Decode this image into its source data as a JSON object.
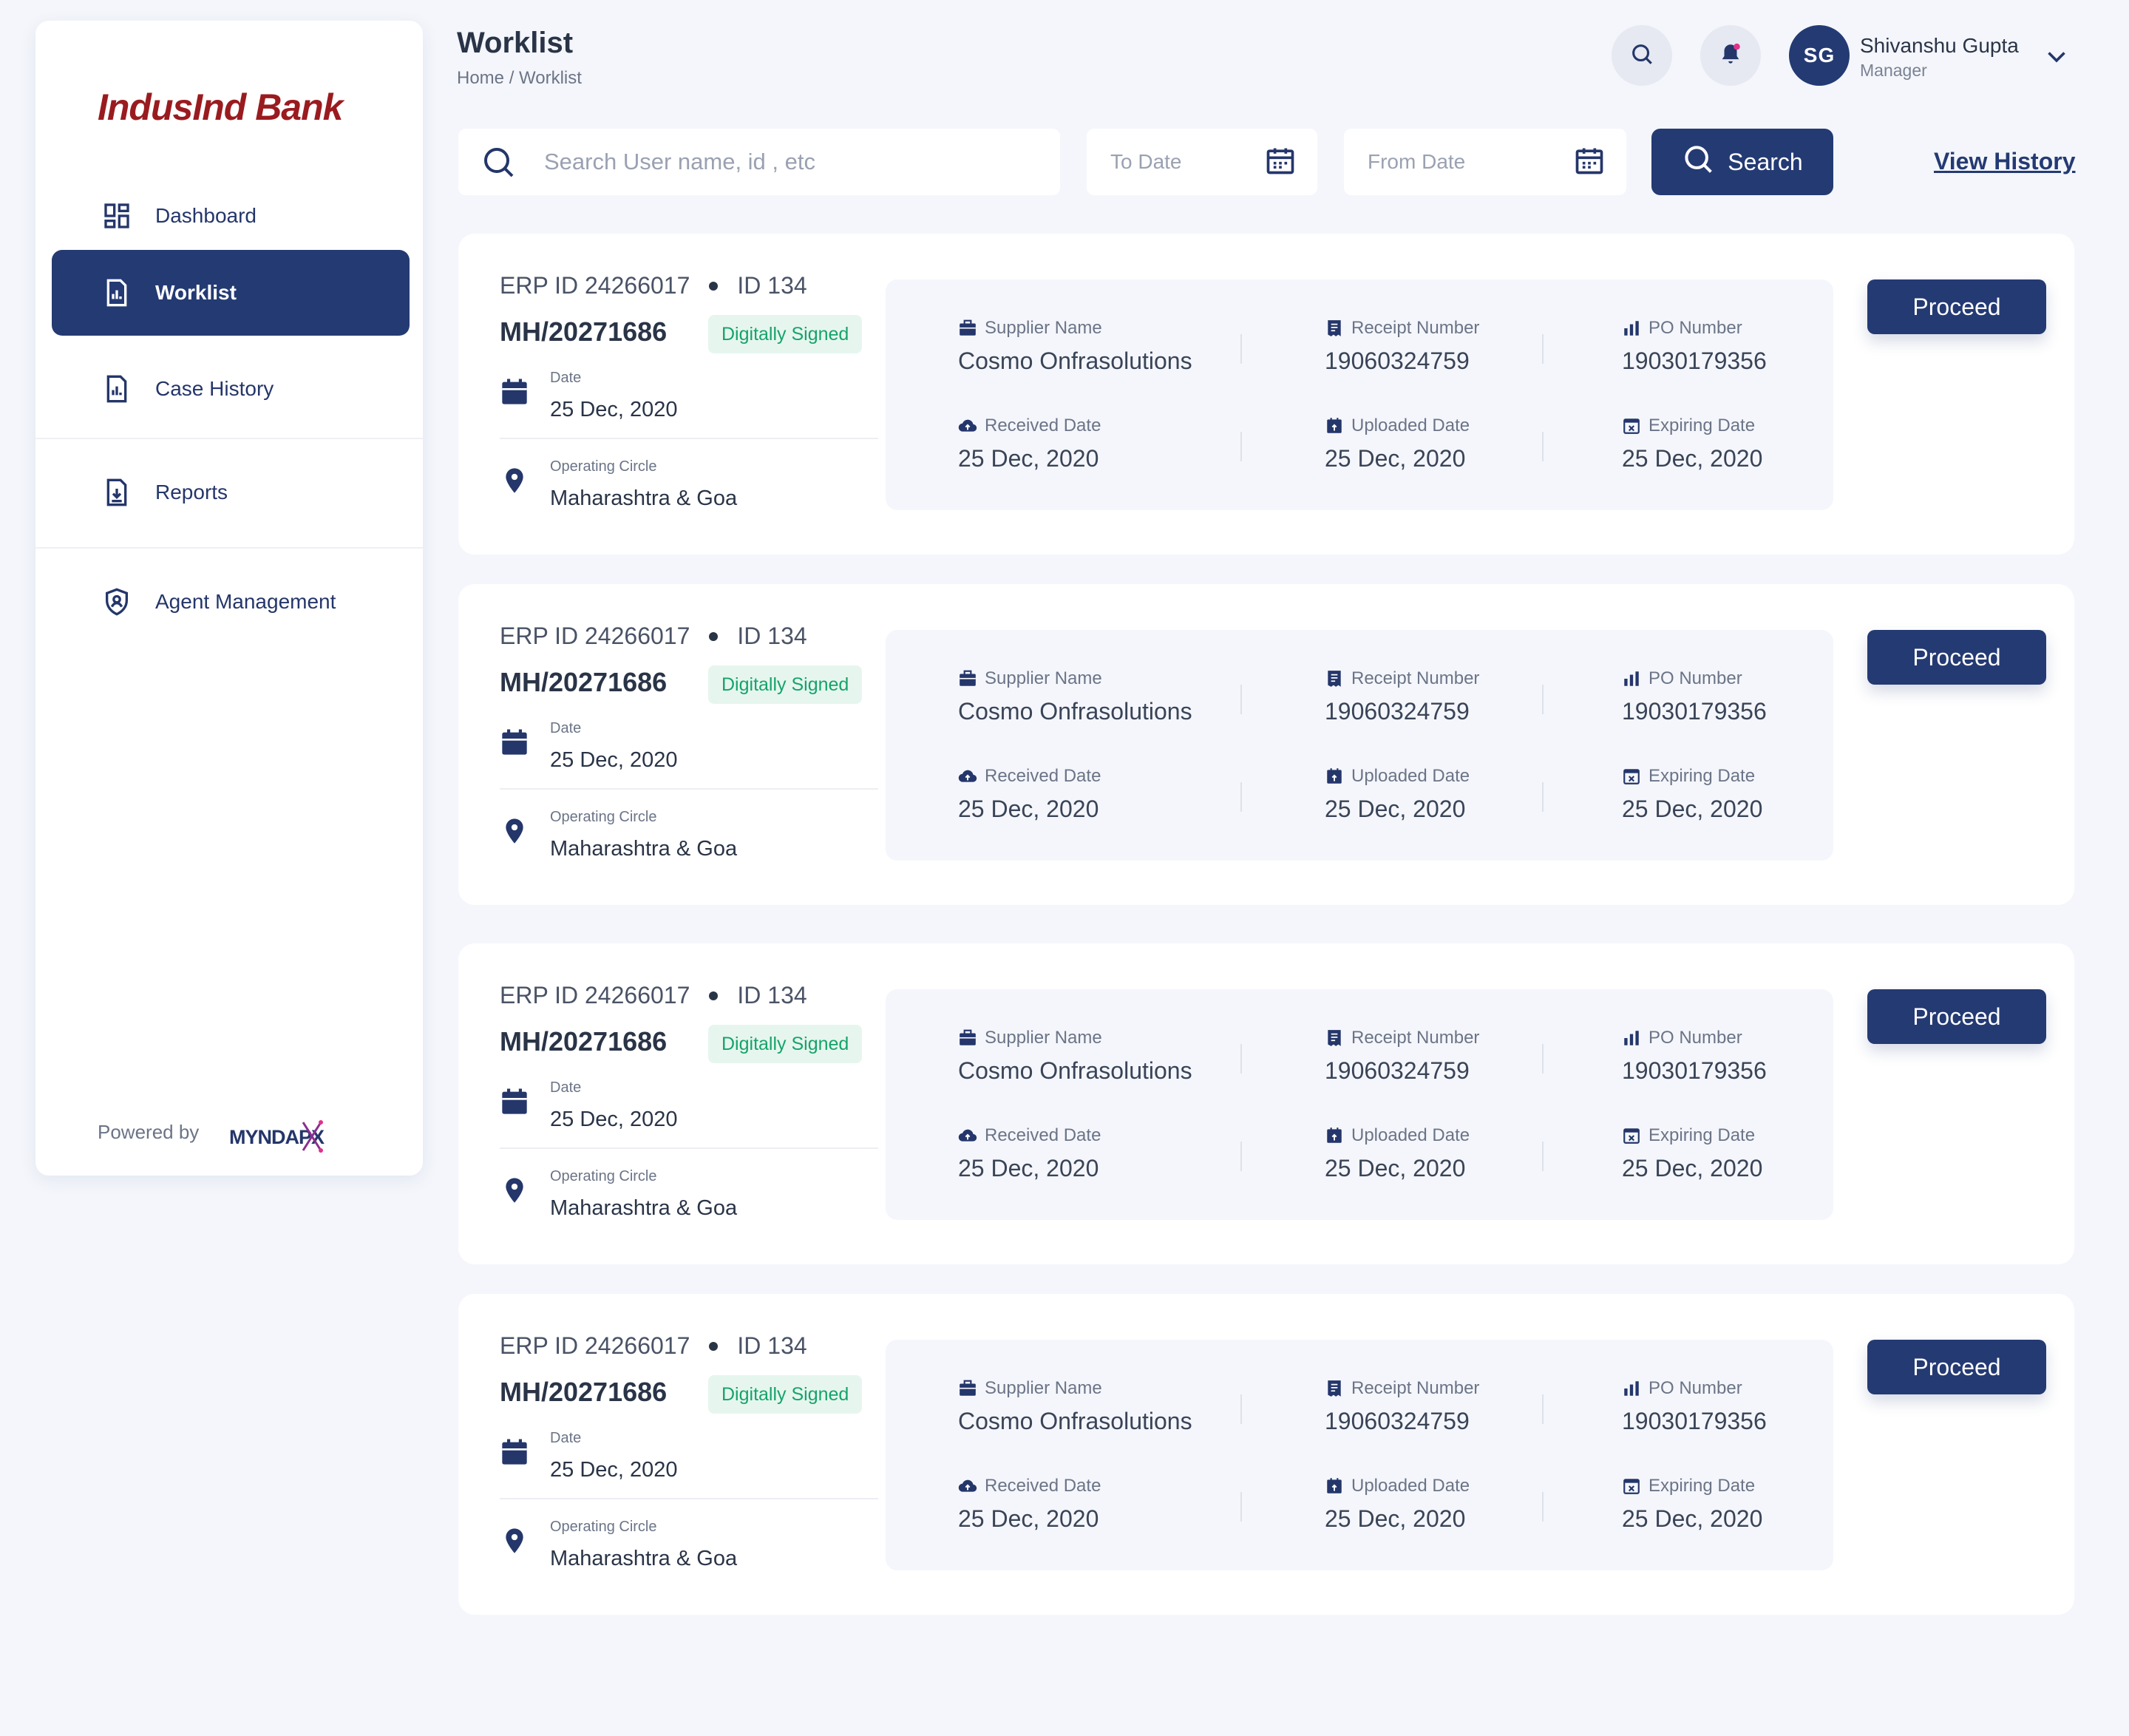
{
  "brand": {
    "logo_text": "IndusInd Bank",
    "logo_color": "#9a1b1f",
    "powered_by": "Powered by",
    "partner_logo": "MYNDAPX"
  },
  "sidebar": {
    "items": [
      {
        "label": "Dashboard",
        "icon": "dashboard-icon",
        "active": false
      },
      {
        "label": "Worklist",
        "icon": "report-chart-icon",
        "active": true
      },
      {
        "label": "Case History",
        "icon": "report-chart-icon",
        "active": false
      },
      {
        "label": "Reports",
        "icon": "download-doc-icon",
        "active": false
      },
      {
        "label": "Agent Management",
        "icon": "shield-user-icon",
        "active": false
      }
    ]
  },
  "header": {
    "title": "Worklist",
    "breadcrumb": "Home / Worklist",
    "user": {
      "initials": "SG",
      "name": "Shivanshu Gupta",
      "role": "Manager"
    }
  },
  "filters": {
    "search_placeholder": "Search User name, id , etc",
    "search_value": "",
    "to_date_placeholder": "To Date",
    "from_date_placeholder": "From Date",
    "search_button": "Search",
    "view_history": "View History"
  },
  "labels": {
    "date": "Date",
    "operating_circle": "Operating Circle",
    "supplier_name": "Supplier Name",
    "receipt_number": "Receipt Number",
    "po_number": "PO Number",
    "received_date": "Received Date",
    "uploaded_date": "Uploaded Date",
    "expiring_date": "Expiring Date",
    "proceed": "Proceed"
  },
  "cards": [
    {
      "erp_id": "ERP ID 24266017",
      "id": "ID 134",
      "mh_id": "MH/20271686",
      "status": "Digitally Signed",
      "date": "25 Dec, 2020",
      "circle": "Maharashtra & Goa",
      "supplier": "Cosmo Onfrasolutions",
      "receipt": "19060324759",
      "po": "19030179356",
      "received": "25 Dec, 2020",
      "uploaded": "25 Dec, 2020",
      "expiring": "25 Dec, 2020"
    },
    {
      "erp_id": "ERP ID 24266017",
      "id": "ID 134",
      "mh_id": "MH/20271686",
      "status": "Digitally Signed",
      "date": "25 Dec, 2020",
      "circle": "Maharashtra & Goa",
      "supplier": "Cosmo Onfrasolutions",
      "receipt": "19060324759",
      "po": "19030179356",
      "received": "25 Dec, 2020",
      "uploaded": "25 Dec, 2020",
      "expiring": "25 Dec, 2020"
    },
    {
      "erp_id": "ERP ID 24266017",
      "id": "ID 134",
      "mh_id": "MH/20271686",
      "status": "Digitally Signed",
      "date": "25 Dec, 2020",
      "circle": "Maharashtra & Goa",
      "supplier": "Cosmo Onfrasolutions",
      "receipt": "19060324759",
      "po": "19030179356",
      "received": "25 Dec, 2020",
      "uploaded": "25 Dec, 2020",
      "expiring": "25 Dec, 2020"
    },
    {
      "erp_id": "ERP ID 24266017",
      "id": "ID 134",
      "mh_id": "MH/20271686",
      "status": "Digitally Signed",
      "date": "25 Dec, 2020",
      "circle": "Maharashtra & Goa",
      "supplier": "Cosmo Onfrasolutions",
      "receipt": "19060324759",
      "po": "19030179356",
      "received": "25 Dec, 2020",
      "uploaded": "25 Dec, 2020",
      "expiring": "25 Dec, 2020"
    }
  ],
  "colors": {
    "primary": "#243a73",
    "success_text": "#16a36a",
    "success_bg": "#e6f6ef",
    "notification_dot": "#e0338a"
  }
}
